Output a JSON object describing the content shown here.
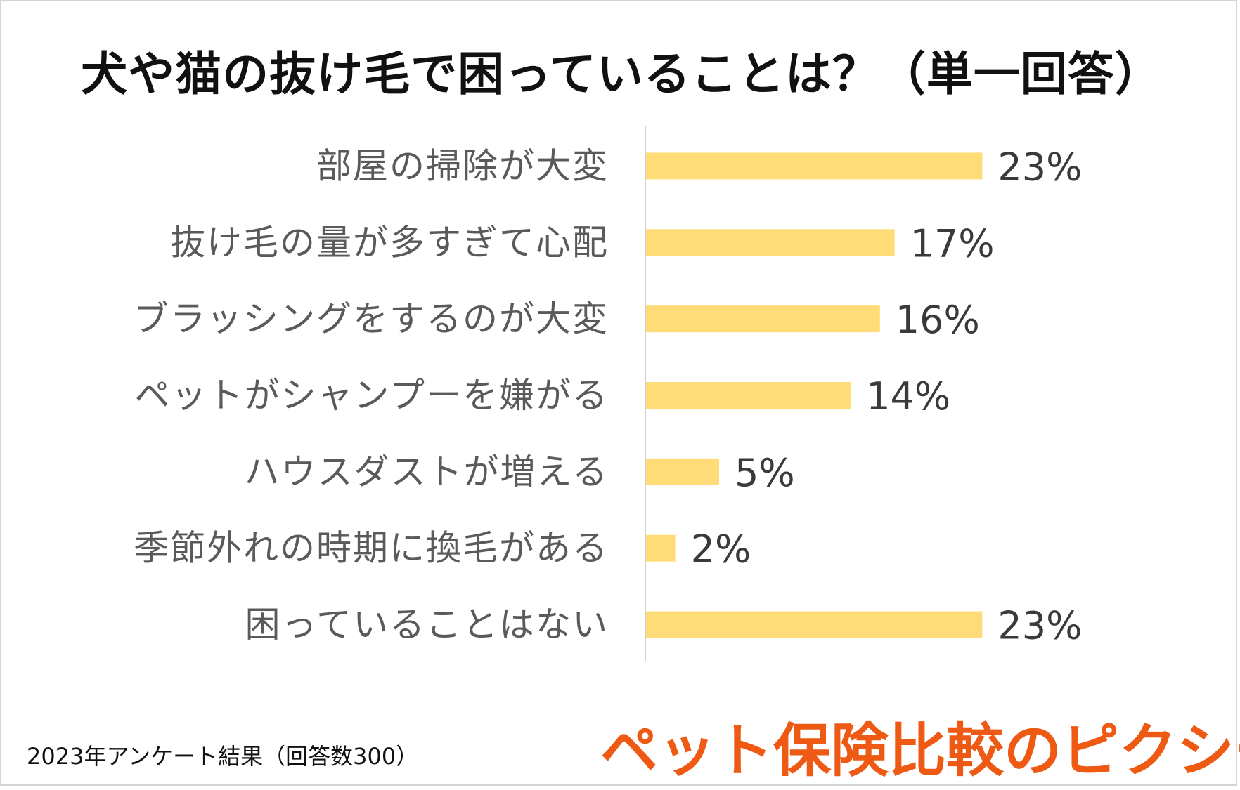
{
  "title": "犬や猫の抜け毛で困っていることは？（単一回答）",
  "footnote": "2023年アンケート結果（回答数300）",
  "logo_text": "ペット保険比較のピクシー",
  "colors": {
    "bar": "#ffdc78",
    "axis": "#d0d0d0",
    "logo": "#ee5a14"
  },
  "chart_data": {
    "type": "bar",
    "orientation": "horizontal",
    "categories": [
      "部屋の掃除が大変",
      "抜け毛の量が多すぎて心配",
      "ブラッシングをするのが大変",
      "ペットがシャンプーを嫌がる",
      "ハウスダストが増える",
      "季節外れの時期に換毛がある",
      "困っていることはない"
    ],
    "values": [
      23,
      17,
      16,
      14,
      5,
      2,
      23
    ],
    "value_labels": [
      "23%",
      "17%",
      "16%",
      "14%",
      "5%",
      "2%",
      "23%"
    ],
    "unit": "%",
    "xlim": [
      0,
      40
    ],
    "grid": false,
    "legend": "none"
  }
}
